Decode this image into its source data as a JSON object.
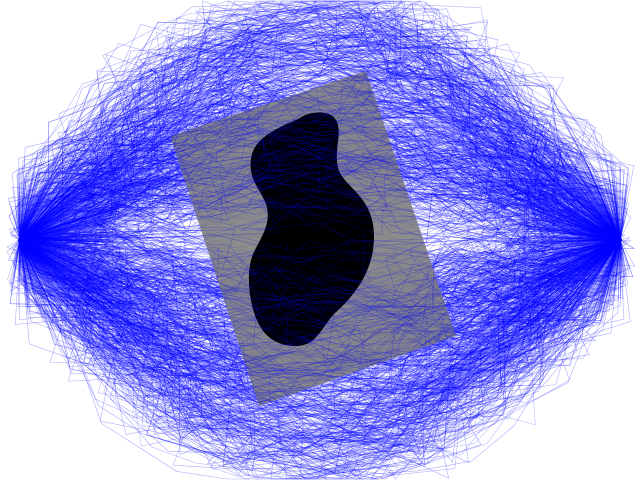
{
  "scene": {
    "background_color": "#ffffff",
    "path_color": "#0000ff",
    "obstacle_region_color": "#808080",
    "obstacle_core_color": "#000000",
    "endpoints": [
      "start-node",
      "goal-node"
    ]
  }
}
